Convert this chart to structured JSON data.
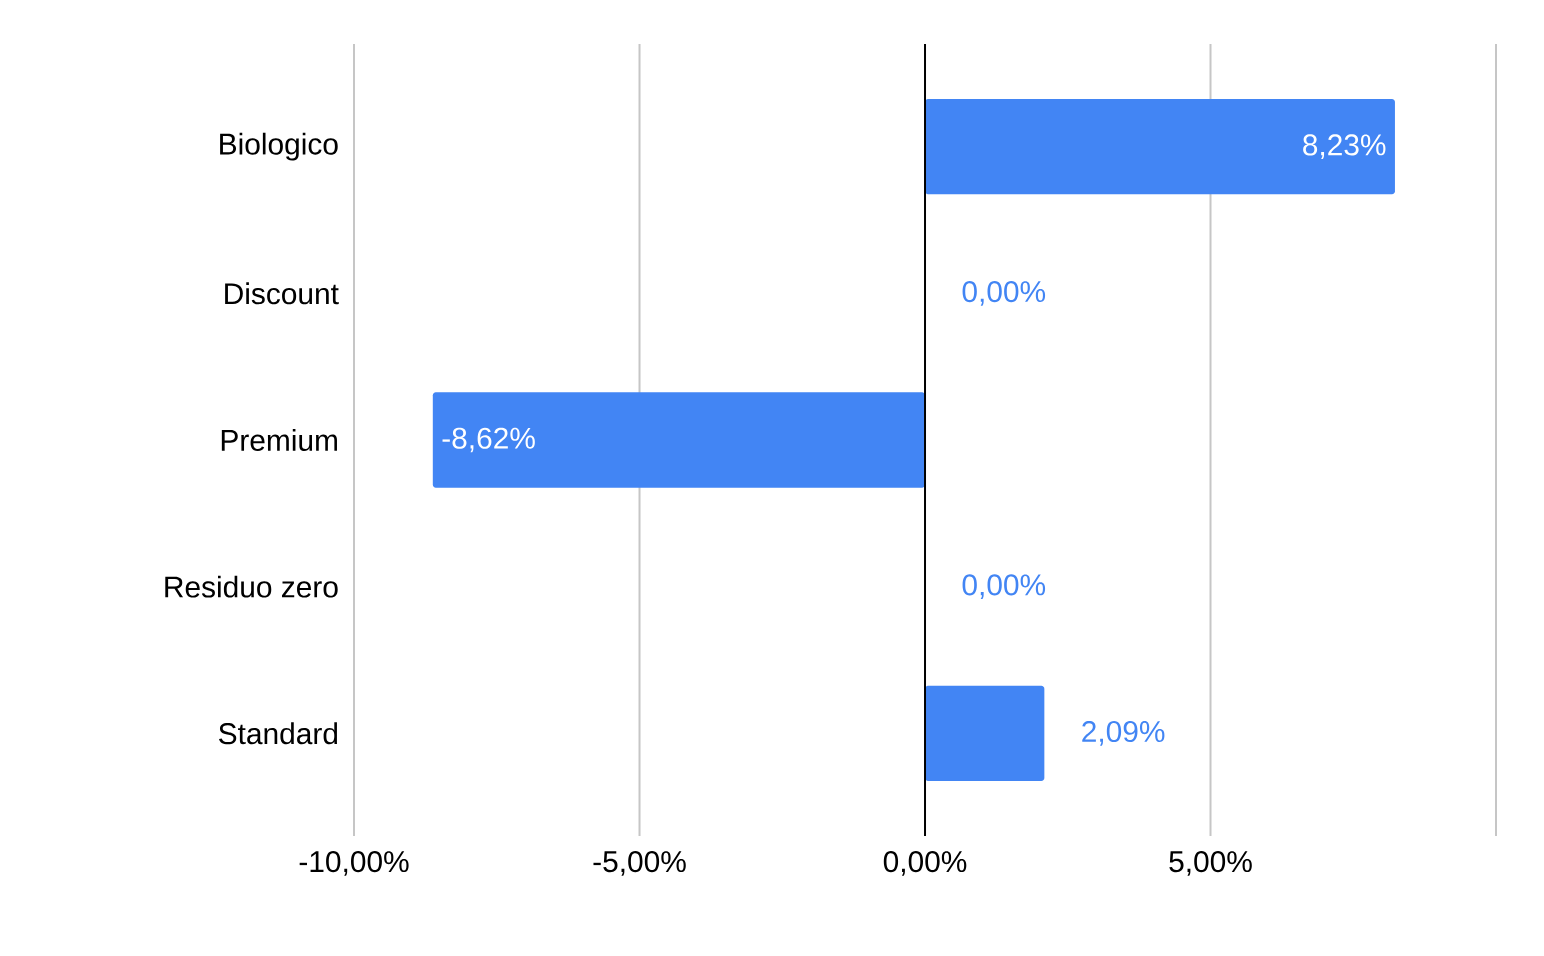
{
  "chart_data": {
    "type": "bar",
    "orientation": "horizontal",
    "categories": [
      "Biologico",
      "Discount",
      "Premium",
      "Residuo zero",
      "Standard"
    ],
    "values": [
      8.23,
      0,
      -8.62,
      0,
      2.09
    ],
    "value_labels": [
      "8,23%",
      "0,00%",
      "-8,62%",
      "0,00%",
      "2,09%"
    ],
    "color": "#4285f4",
    "xlim": [
      -10,
      10
    ],
    "xticks": [
      {
        "value": -10,
        "label": "-10,00%"
      },
      {
        "value": -5,
        "label": "-5,00%"
      },
      {
        "value": 0,
        "label": "0,00%"
      },
      {
        "value": 5,
        "label": "5,00%"
      },
      {
        "value": 10,
        "label": null
      }
    ],
    "grid": "x"
  }
}
